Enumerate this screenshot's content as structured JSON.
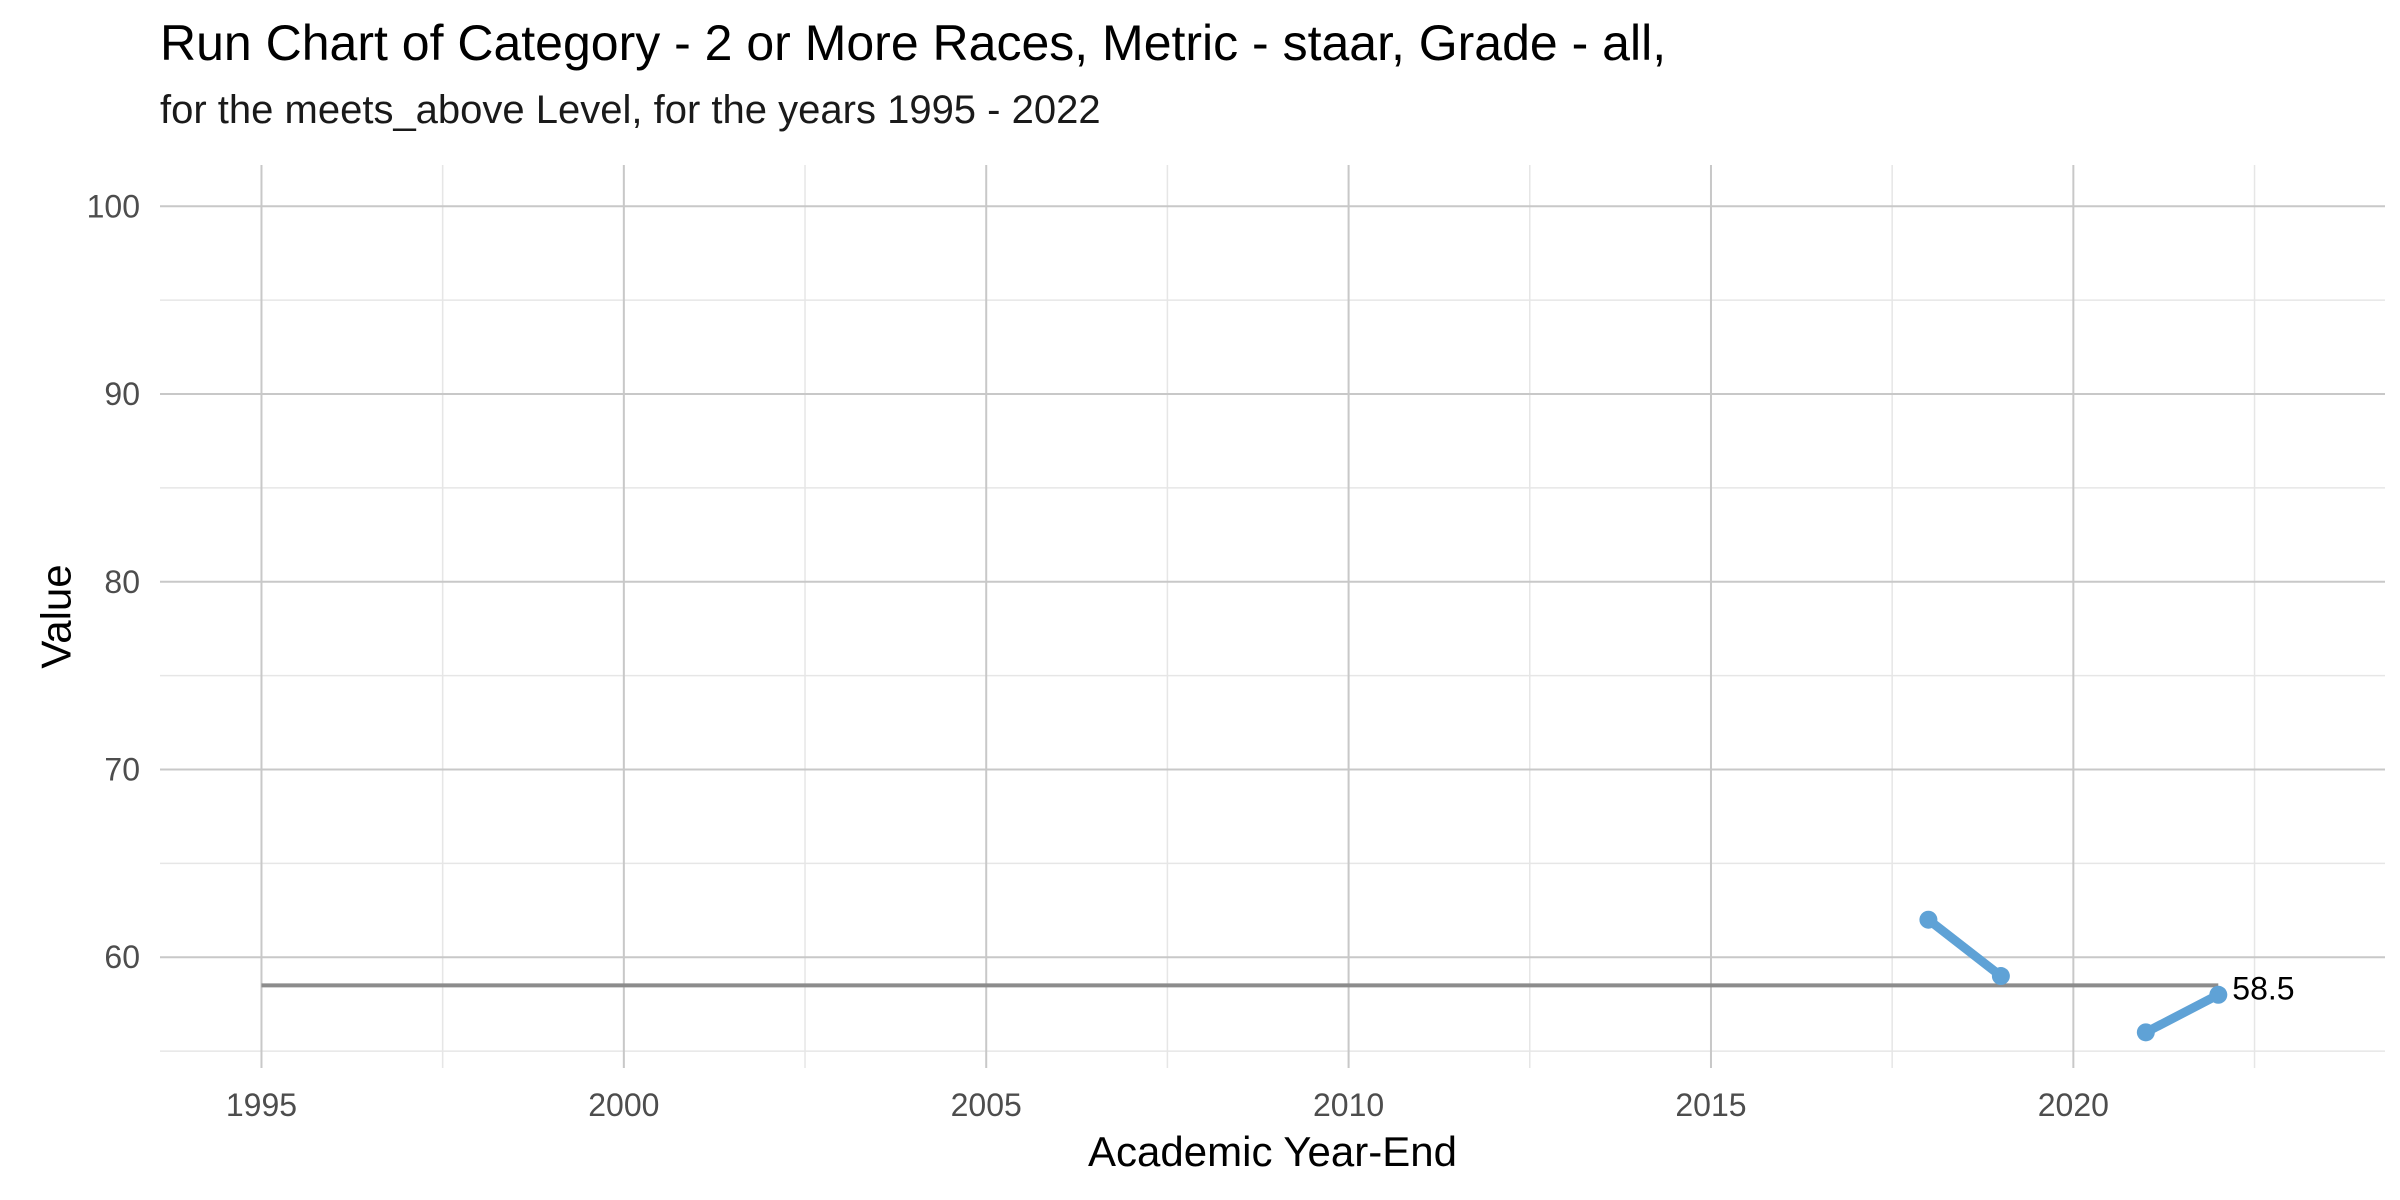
{
  "chart_data": {
    "type": "line",
    "title": "Run Chart of Category - 2 or More Races, Metric - staar, Grade - all,",
    "subtitle": "for the meets_above Level, for the years 1995 - 2022",
    "xlabel": "Academic Year-End",
    "ylabel": "Value",
    "xlim": [
      1993.6,
      2024.3
    ],
    "ylim": [
      54.1,
      102.2
    ],
    "x_ticks": [
      1995,
      2000,
      2005,
      2010,
      2015,
      2020
    ],
    "y_ticks": [
      60,
      70,
      80,
      90,
      100
    ],
    "grid": true,
    "segments": [
      {
        "points": [
          {
            "x": 2018,
            "y": 62
          },
          {
            "x": 2019,
            "y": 59
          }
        ]
      },
      {
        "points": [
          {
            "x": 2021,
            "y": 56
          },
          {
            "x": 2022,
            "y": 58
          }
        ]
      }
    ],
    "median_line": {
      "x_start": 1995,
      "x_end": 2022,
      "value": 58.5,
      "label": "58.5"
    },
    "colors": {
      "series": "#5fa2d6",
      "median": "#8c8c8c",
      "grid_major": "#c8c8c8",
      "grid_minor": "#e6e6e6"
    }
  }
}
